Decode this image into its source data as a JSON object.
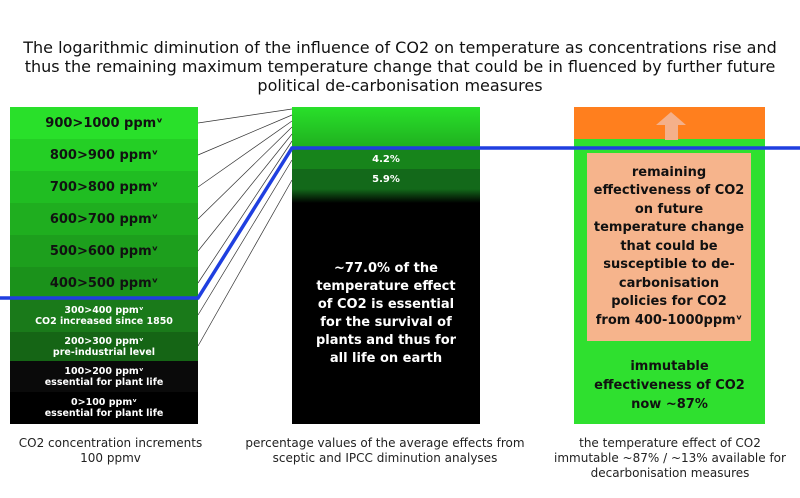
{
  "title": "The logarithmic diminution of the influence of CO2 on temperature as concentrations rise and thus the remaining maximum temperature change that could be in fluenced by further future political de-carbonisation measures",
  "left_column": {
    "segments": [
      {
        "label": "900>1000 ppmᵛ",
        "color": "#29e02a"
      },
      {
        "label": "800>900 ppmᵛ",
        "color": "#24cf25"
      },
      {
        "label": "700>800 ppmᵛ",
        "color": "#20bd22"
      },
      {
        "label": "600>700 ppmᵛ",
        "color": "#1fae1f"
      },
      {
        "label": "500>600 ppmᵛ",
        "color": "#1d9f1d"
      },
      {
        "label": "400>500 ppmᵛ",
        "color": "#1b921b"
      },
      {
        "label": "300>400 ppmᵛ",
        "sub": "CO2 increased since 1850",
        "color": "#1a7a1a"
      },
      {
        "label": "200>300 ppmᵛ",
        "sub": "pre-industrial level",
        "color": "#156515"
      },
      {
        "label": "100>200 ppmᵛ",
        "sub": "essential for plant life",
        "color": "#0a0a0a"
      },
      {
        "label": "0>100 ppmᵛ",
        "sub": "essential for plant life",
        "color": "#000000"
      }
    ]
  },
  "middle_column": {
    "label_42": "4.2%",
    "label_59": "5.9%",
    "main_text": "~77.0% of the temperature effect of CO2 is essential for the survival of plants and thus for all life on earth"
  },
  "right_column": {
    "box_text": "remaining effectiveness of CO2 on future temperature change that could be susceptible to de-carbonisation policies for CO2 from 400-1000ppmᵛ",
    "immutable_text": "immutable effectiveness of CO2  now ~87%",
    "colors": {
      "top": "#ff7f1e",
      "green": "#2fe02f",
      "box": "#f6b48c",
      "arrow": "#f4b08a"
    }
  },
  "captions": {
    "left": "CO2 concentration increments 100 ppmv",
    "middle": "percentage values of the average effects from sceptic and IPCC diminution analyses",
    "right": "the temperature effect of CO2 immutable ~87% / ~13% available for decarbonisation measures"
  },
  "line_color": "#1f3fe0"
}
